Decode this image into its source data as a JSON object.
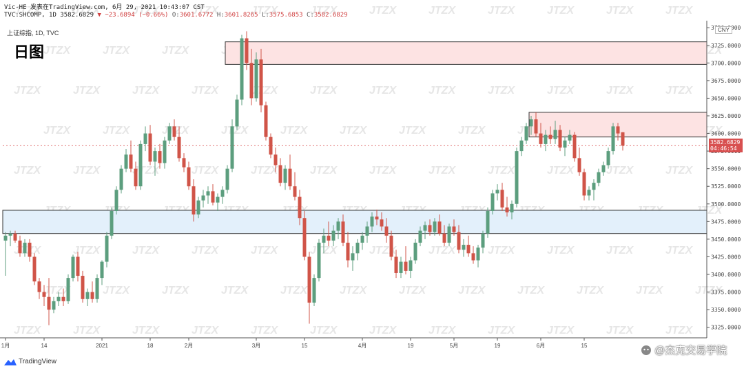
{
  "header": {
    "line1_author": "Vic-HE",
    "line1_published": "发表在TradingView.com, 6月 29, 2021 10:43:07 CST",
    "line2_symbol": "TVC:SHCOMP, 1D",
    "line2_price": "3582.6829",
    "line2_change": "▼ −23.6894 (−0.66%)",
    "line2_o": "O:",
    "line2_o_val": "3601.6772",
    "line2_h": "H:",
    "line2_h_val": "3601.8265",
    "line2_l": "L:",
    "line2_l_val": "3575.6853",
    "line2_c": "C:",
    "line2_c_val": "3582.6829"
  },
  "symbol_label": "上证综指, 1D, TVC",
  "big_title": "日图",
  "currency": "CNY",
  "price_tag": {
    "price": "3582.6829",
    "countdown": "04:46:54"
  },
  "watermark_text": "JTZX",
  "footer": {
    "logo": "TradingView",
    "account": "@杰克交易学院"
  },
  "colors": {
    "up": "#5c9e7e",
    "down": "#d05448",
    "resistance_zone": "#fde3e3",
    "support_zone": "#e3f0fb",
    "zone_border": "#333333",
    "price_line": "#e07070"
  },
  "chart_data": {
    "type": "candlestick",
    "ylim": [
      3310,
      3760
    ],
    "y_ticks": [
      "3750.0000",
      "3725.0000",
      "3700.0000",
      "3675.0000",
      "3650.0000",
      "3625.0000",
      "3600.0000",
      "3575.0000",
      "3550.0000",
      "3525.0000",
      "3500.0000",
      "3475.0000",
      "3450.0000",
      "3425.0000",
      "3400.0000",
      "3375.0000",
      "3350.0000",
      "3325.0000"
    ],
    "x_ticks": [
      {
        "label": "1月",
        "bar": 0
      },
      {
        "label": "14",
        "bar": 8
      },
      {
        "label": "2021",
        "bar": 20
      },
      {
        "label": "18",
        "bar": 30
      },
      {
        "label": "2月",
        "bar": 38
      },
      {
        "label": "3月",
        "bar": 52
      },
      {
        "label": "15",
        "bar": 62
      },
      {
        "label": "4月",
        "bar": 74
      },
      {
        "label": "19",
        "bar": 84
      },
      {
        "label": "5月",
        "bar": 93
      },
      {
        "label": "19",
        "bar": 102
      },
      {
        "label": "6月",
        "bar": 111
      },
      {
        "label": "15",
        "bar": 120
      }
    ],
    "zones": [
      {
        "name": "resistance",
        "from": 3698,
        "to": 3730,
        "start_bar": 46
      },
      {
        "name": "resistance-2",
        "from": 3595,
        "to": 3630,
        "start_bar": 109
      },
      {
        "name": "support",
        "from": 3458,
        "to": 3491,
        "start_bar": 0
      }
    ],
    "last_price": 3582.68,
    "candles": [
      [
        3448,
        3460,
        3398,
        3455
      ],
      [
        3455,
        3462,
        3440,
        3458
      ],
      [
        3458,
        3462,
        3445,
        3448
      ],
      [
        3448,
        3455,
        3425,
        3430
      ],
      [
        3430,
        3450,
        3425,
        3445
      ],
      [
        3445,
        3450,
        3418,
        3425
      ],
      [
        3425,
        3430,
        3385,
        3390
      ],
      [
        3390,
        3395,
        3365,
        3375
      ],
      [
        3375,
        3385,
        3355,
        3368
      ],
      [
        3368,
        3395,
        3328,
        3350
      ],
      [
        3350,
        3368,
        3345,
        3362
      ],
      [
        3362,
        3375,
        3355,
        3368
      ],
      [
        3368,
        3380,
        3355,
        3362
      ],
      [
        3362,
        3400,
        3358,
        3395
      ],
      [
        3395,
        3428,
        3390,
        3425
      ],
      [
        3425,
        3432,
        3390,
        3398
      ],
      [
        3398,
        3405,
        3360,
        3365
      ],
      [
        3365,
        3380,
        3355,
        3375
      ],
      [
        3375,
        3390,
        3360,
        3365
      ],
      [
        3365,
        3400,
        3360,
        3395
      ],
      [
        3395,
        3420,
        3385,
        3418
      ],
      [
        3418,
        3460,
        3410,
        3455
      ],
      [
        3455,
        3495,
        3450,
        3490
      ],
      [
        3490,
        3525,
        3485,
        3520
      ],
      [
        3520,
        3555,
        3515,
        3550
      ],
      [
        3550,
        3578,
        3545,
        3570
      ],
      [
        3570,
        3590,
        3545,
        3550
      ],
      [
        3550,
        3560,
        3520,
        3525
      ],
      [
        3525,
        3590,
        3520,
        3585
      ],
      [
        3585,
        3610,
        3575,
        3600
      ],
      [
        3600,
        3612,
        3555,
        3560
      ],
      [
        3560,
        3580,
        3540,
        3575
      ],
      [
        3575,
        3585,
        3550,
        3558
      ],
      [
        3558,
        3595,
        3550,
        3590
      ],
      [
        3590,
        3615,
        3585,
        3610
      ],
      [
        3610,
        3620,
        3590,
        3595
      ],
      [
        3595,
        3610,
        3560,
        3565
      ],
      [
        3565,
        3572,
        3545,
        3552
      ],
      [
        3552,
        3560,
        3520,
        3525
      ],
      [
        3525,
        3535,
        3475,
        3485
      ],
      [
        3485,
        3510,
        3480,
        3505
      ],
      [
        3505,
        3520,
        3495,
        3512
      ],
      [
        3512,
        3525,
        3500,
        3518
      ],
      [
        3518,
        3528,
        3498,
        3502
      ],
      [
        3502,
        3515,
        3490,
        3510
      ],
      [
        3510,
        3525,
        3500,
        3520
      ],
      [
        3520,
        3555,
        3515,
        3550
      ],
      [
        3550,
        3620,
        3545,
        3610
      ],
      [
        3610,
        3655,
        3605,
        3648
      ],
      [
        3648,
        3740,
        3640,
        3735
      ],
      [
        3735,
        3745,
        3690,
        3700
      ],
      [
        3700,
        3720,
        3640,
        3650
      ],
      [
        3650,
        3715,
        3645,
        3705
      ],
      [
        3705,
        3720,
        3630,
        3640
      ],
      [
        3640,
        3645,
        3590,
        3595
      ],
      [
        3595,
        3600,
        3565,
        3570
      ],
      [
        3570,
        3580,
        3545,
        3555
      ],
      [
        3555,
        3565,
        3525,
        3530
      ],
      [
        3530,
        3555,
        3520,
        3550
      ],
      [
        3550,
        3570,
        3520,
        3525
      ],
      [
        3525,
        3545,
        3505,
        3510
      ],
      [
        3510,
        3520,
        3470,
        3480
      ],
      [
        3480,
        3490,
        3420,
        3425
      ],
      [
        3425,
        3432,
        3330,
        3360
      ],
      [
        3360,
        3400,
        3355,
        3395
      ],
      [
        3395,
        3450,
        3390,
        3445
      ],
      [
        3445,
        3465,
        3430,
        3455
      ],
      [
        3455,
        3475,
        3440,
        3448
      ],
      [
        3448,
        3470,
        3440,
        3462
      ],
      [
        3462,
        3480,
        3450,
        3475
      ],
      [
        3475,
        3485,
        3440,
        3445
      ],
      [
        3445,
        3460,
        3410,
        3420
      ],
      [
        3420,
        3440,
        3405,
        3430
      ],
      [
        3430,
        3450,
        3420,
        3445
      ],
      [
        3445,
        3460,
        3435,
        3455
      ],
      [
        3455,
        3475,
        3445,
        3468
      ],
      [
        3468,
        3488,
        3460,
        3482
      ],
      [
        3482,
        3492,
        3470,
        3478
      ],
      [
        3478,
        3488,
        3462,
        3468
      ],
      [
        3468,
        3480,
        3445,
        3455
      ],
      [
        3455,
        3462,
        3420,
        3425
      ],
      [
        3425,
        3435,
        3395,
        3402
      ],
      [
        3402,
        3425,
        3395,
        3418
      ],
      [
        3418,
        3440,
        3400,
        3405
      ],
      [
        3405,
        3425,
        3395,
        3420
      ],
      [
        3420,
        3450,
        3415,
        3445
      ],
      [
        3445,
        3468,
        3440,
        3462
      ],
      [
        3462,
        3475,
        3450,
        3470
      ],
      [
        3470,
        3478,
        3455,
        3460
      ],
      [
        3460,
        3480,
        3455,
        3475
      ],
      [
        3475,
        3485,
        3455,
        3458
      ],
      [
        3458,
        3470,
        3440,
        3445
      ],
      [
        3445,
        3472,
        3440,
        3468
      ],
      [
        3468,
        3478,
        3455,
        3460
      ],
      [
        3460,
        3470,
        3430,
        3435
      ],
      [
        3435,
        3450,
        3425,
        3442
      ],
      [
        3442,
        3455,
        3425,
        3430
      ],
      [
        3430,
        3440,
        3415,
        3420
      ],
      [
        3420,
        3442,
        3410,
        3438
      ],
      [
        3438,
        3462,
        3430,
        3458
      ],
      [
        3458,
        3495,
        3452,
        3490
      ],
      [
        3490,
        3520,
        3485,
        3515
      ],
      [
        3515,
        3528,
        3505,
        3520
      ],
      [
        3520,
        3530,
        3490,
        3495
      ],
      [
        3495,
        3510,
        3482,
        3488
      ],
      [
        3488,
        3505,
        3478,
        3500
      ],
      [
        3500,
        3580,
        3495,
        3575
      ],
      [
        3575,
        3595,
        3568,
        3590
      ],
      [
        3590,
        3615,
        3585,
        3610
      ],
      [
        3610,
        3625,
        3598,
        3620
      ],
      [
        3620,
        3630,
        3595,
        3600
      ],
      [
        3600,
        3615,
        3580,
        3585
      ],
      [
        3585,
        3605,
        3575,
        3598
      ],
      [
        3598,
        3610,
        3585,
        3592
      ],
      [
        3592,
        3618,
        3585,
        3605
      ],
      [
        3605,
        3612,
        3575,
        3580
      ],
      [
        3580,
        3595,
        3568,
        3590
      ],
      [
        3590,
        3605,
        3585,
        3598
      ],
      [
        3598,
        3602,
        3560,
        3565
      ],
      [
        3565,
        3580,
        3540,
        3545
      ],
      [
        3545,
        3550,
        3505,
        3512
      ],
      [
        3512,
        3525,
        3505,
        3520
      ],
      [
        3520,
        3535,
        3505,
        3530
      ],
      [
        3530,
        3550,
        3525,
        3545
      ],
      [
        3545,
        3560,
        3540,
        3555
      ],
      [
        3555,
        3580,
        3550,
        3575
      ],
      [
        3575,
        3615,
        3570,
        3610
      ],
      [
        3610,
        3615,
        3590,
        3600
      ],
      [
        3601.68,
        3601.83,
        3575.69,
        3582.68
      ]
    ]
  }
}
